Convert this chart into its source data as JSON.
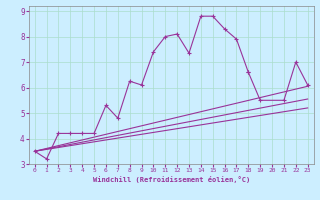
{
  "xlabel": "Windchill (Refroidissement éolien,°C)",
  "background_color": "#cceeff",
  "grid_color": "#aaddcc",
  "line_color": "#993399",
  "xlim": [
    -0.5,
    23.5
  ],
  "ylim": [
    3,
    9.2
  ],
  "xticks": [
    0,
    1,
    2,
    3,
    4,
    5,
    6,
    7,
    8,
    9,
    10,
    11,
    12,
    13,
    14,
    15,
    16,
    17,
    18,
    19,
    20,
    21,
    22,
    23
  ],
  "yticks": [
    3,
    4,
    5,
    6,
    7,
    8,
    9
  ],
  "main_x": [
    0,
    1,
    2,
    3,
    4,
    5,
    6,
    7,
    8,
    9,
    10,
    11,
    12,
    13,
    14,
    15,
    16,
    17,
    18
  ],
  "main_y": [
    3.5,
    3.2,
    4.2,
    4.2,
    4.2,
    4.2,
    5.3,
    4.8,
    6.25,
    6.1,
    7.4,
    8.0,
    8.1,
    7.35,
    8.8,
    8.8,
    8.3,
    7.9,
    6.6
  ],
  "linear_lines": [
    {
      "x": [
        0,
        23
      ],
      "y": [
        3.5,
        5.2
      ]
    },
    {
      "x": [
        0,
        23
      ],
      "y": [
        3.5,
        5.55
      ]
    },
    {
      "x": [
        0,
        23
      ],
      "y": [
        3.5,
        6.05
      ]
    }
  ],
  "tail_x": [
    18,
    19,
    21,
    22,
    23
  ],
  "tail_y": [
    6.6,
    5.5,
    5.5,
    7.0,
    6.1
  ]
}
